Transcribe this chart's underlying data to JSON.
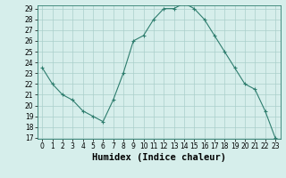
{
  "x": [
    0,
    1,
    2,
    3,
    4,
    5,
    6,
    7,
    8,
    9,
    10,
    11,
    12,
    13,
    14,
    15,
    16,
    17,
    18,
    19,
    20,
    21,
    22,
    23
  ],
  "y": [
    23.5,
    22,
    21,
    20.5,
    19.5,
    19,
    18.5,
    20.5,
    23,
    26,
    26.5,
    28,
    29,
    29,
    29.5,
    29,
    28,
    26.5,
    25,
    23.5,
    22,
    21.5,
    19.5,
    17
  ],
  "line_color": "#2e7d6e",
  "marker": "+",
  "marker_color": "#2e7d6e",
  "bg_color": "#d6eeeb",
  "grid_color": "#aacfcb",
  "xlabel": "Humidex (Indice chaleur)",
  "ylim": [
    17,
    29
  ],
  "xlim": [
    -0.5,
    23.5
  ],
  "yticks": [
    17,
    18,
    19,
    20,
    21,
    22,
    23,
    24,
    25,
    26,
    27,
    28,
    29
  ],
  "xticks": [
    0,
    1,
    2,
    3,
    4,
    5,
    6,
    7,
    8,
    9,
    10,
    11,
    12,
    13,
    14,
    15,
    16,
    17,
    18,
    19,
    20,
    21,
    22,
    23
  ],
  "tick_fontsize": 5.5,
  "xlabel_fontsize": 7.5,
  "spine_color": "#2e7d6e",
  "line_width": 0.8,
  "marker_size": 3.0,
  "marker_edge_width": 0.8
}
